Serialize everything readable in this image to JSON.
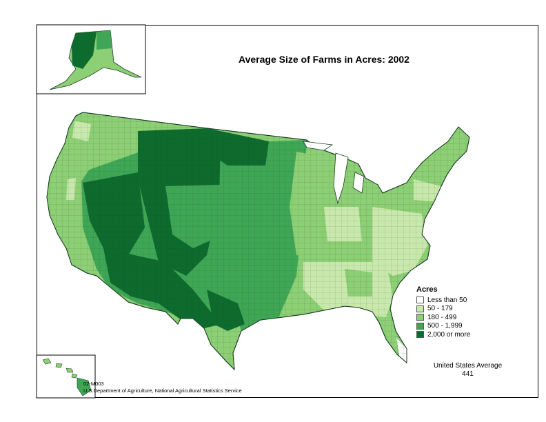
{
  "title": "Average Size of Farms in Acres:  2002",
  "legend": {
    "title": "Acres",
    "items": [
      {
        "label": "Less than 50",
        "color": "#ffffff"
      },
      {
        "label": "50 - 179",
        "color": "#c9e8ac"
      },
      {
        "label": "180 - 499",
        "color": "#8ccf74"
      },
      {
        "label": "500 - 1,999",
        "color": "#3fa656"
      },
      {
        "label": "2,000 or more",
        "color": "#0e6b2e"
      }
    ]
  },
  "average": {
    "label": "United States Average",
    "value": "441"
  },
  "footer": {
    "code": "02-M003",
    "source": "U.S.Department of Agriculture, National Agricultural Statistics Service"
  }
}
